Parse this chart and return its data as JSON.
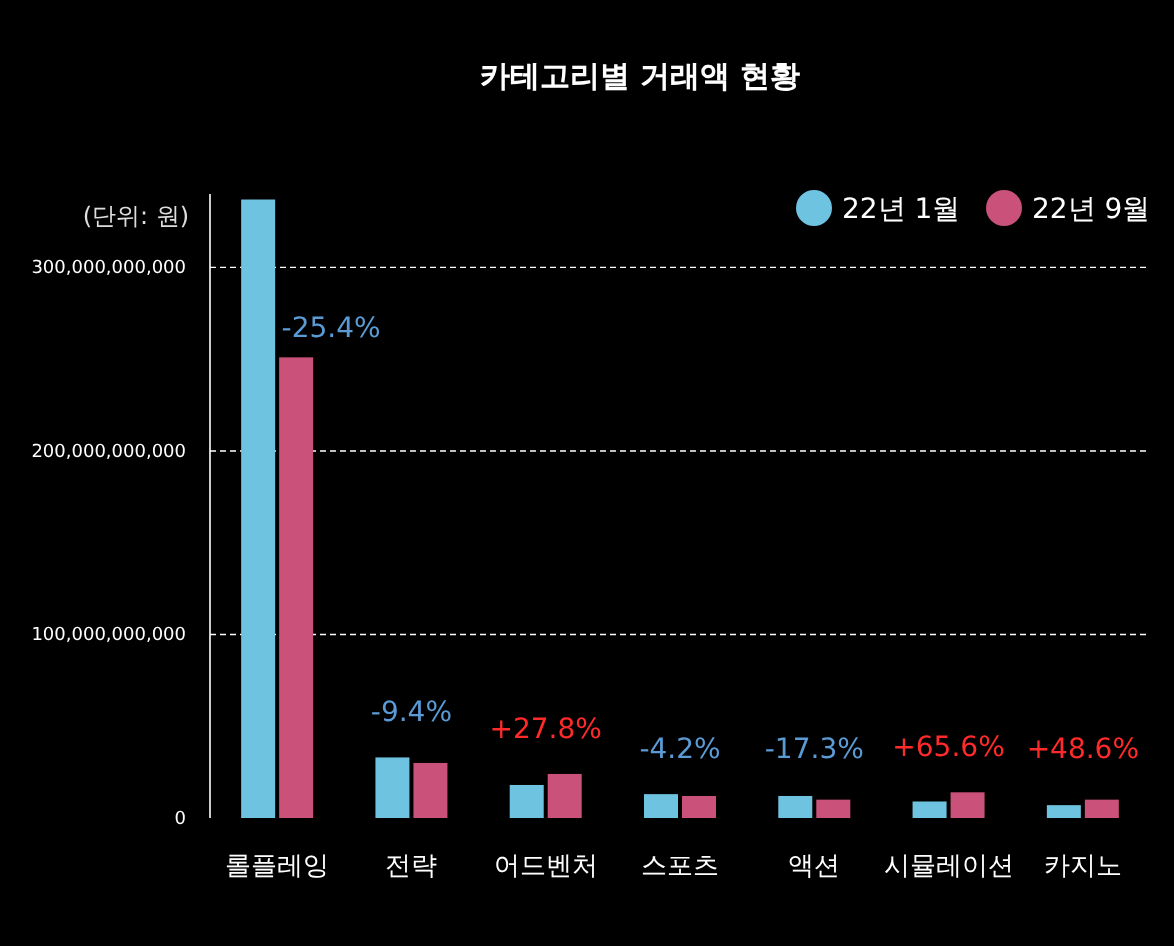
{
  "chart_data": {
    "type": "bar",
    "title": "카테고리별 거래액 현황",
    "ylabel": "(단위: 원)",
    "categories": [
      "롤플레잉",
      "전략",
      "어드벤처",
      "스포츠",
      "액션",
      "시뮬레이션",
      "카지노"
    ],
    "series": [
      {
        "name": "22년 1월",
        "color": "#6ec3e0",
        "values": [
          337000000000,
          33000000000,
          18000000000,
          13000000000,
          12000000000,
          9000000000,
          7000000000
        ]
      },
      {
        "name": "22년 9월",
        "color": "#c9517a",
        "values": [
          251000000000,
          30000000000,
          24000000000,
          12000000000,
          10000000000,
          14000000000,
          10000000000
        ]
      }
    ],
    "ylim": [
      0,
      340000000000
    ],
    "yticks": [
      {
        "value": 0,
        "label": "0"
      },
      {
        "value": 100000000000,
        "label": "100,000,000,000"
      },
      {
        "value": 200000000000,
        "label": "200,000,000,000"
      },
      {
        "value": 300000000000,
        "label": "300,000,000,000"
      }
    ],
    "grid": "y",
    "legend": "top right",
    "annotations": [
      "-25.4%",
      "-9.4%",
      "+27.8%",
      "-4.2%",
      "-17.3%",
      "+65.6%",
      "+48.6%"
    ]
  }
}
